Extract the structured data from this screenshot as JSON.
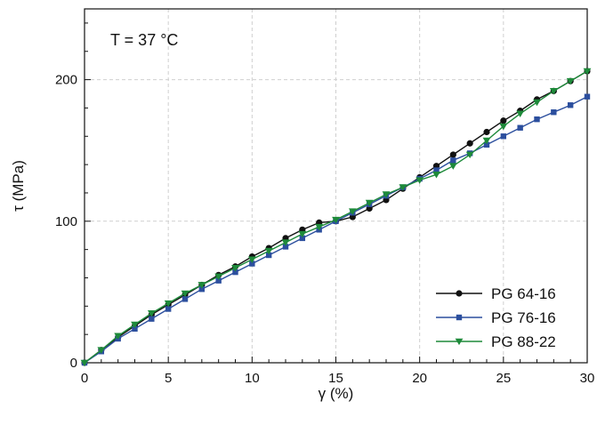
{
  "chart_data": {
    "type": "line",
    "annotation": "T = 37 °C",
    "xlabel": "γ (%)",
    "ylabel": "τ (MPa)",
    "xlim": [
      0,
      30
    ],
    "ylim": [
      0,
      250
    ],
    "x_ticks": [
      0,
      5,
      10,
      15,
      20,
      25,
      30
    ],
    "y_ticks": [
      0,
      100,
      200
    ],
    "grid": true,
    "legend_position": "bottom-right",
    "x": [
      0,
      1,
      2,
      3,
      4,
      5,
      6,
      7,
      8,
      9,
      10,
      11,
      12,
      13,
      14,
      15,
      16,
      17,
      18,
      19,
      20,
      21,
      22,
      23,
      24,
      25,
      26,
      27,
      28,
      29,
      30
    ],
    "series": [
      {
        "name": "PG 64-16",
        "color": "#111111",
        "marker": "circle",
        "values": [
          0,
          9,
          18,
          26,
          34,
          41,
          48,
          55,
          62,
          68,
          75,
          81,
          88,
          94,
          99,
          100,
          103,
          109,
          115,
          123,
          131,
          139,
          147,
          155,
          163,
          171,
          178,
          186,
          192,
          199,
          206
        ]
      },
      {
        "name": "PG 76-16",
        "color": "#2c4f9e",
        "marker": "square",
        "values": [
          0,
          8,
          17,
          24,
          31,
          38,
          45,
          52,
          58,
          64,
          70,
          76,
          82,
          88,
          94,
          100,
          106,
          112,
          118,
          124,
          130,
          136,
          143,
          148,
          154,
          160,
          166,
          172,
          177,
          182,
          188
        ]
      },
      {
        "name": "PG 88-22",
        "color": "#1e8a3a",
        "marker": "triangle-down",
        "values": [
          0,
          9,
          19,
          27,
          35,
          42,
          49,
          55,
          61,
          67,
          73,
          79,
          85,
          91,
          96,
          101,
          107,
          113,
          119,
          124,
          129,
          133,
          139,
          147,
          157,
          167,
          176,
          184,
          192,
          199,
          206
        ]
      }
    ]
  }
}
